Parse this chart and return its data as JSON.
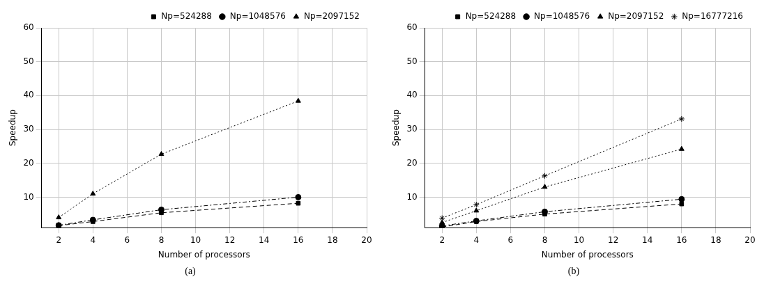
{
  "chart_data": [
    {
      "type": "line",
      "xlabel": "Number of processors",
      "ylabel": "Speedup",
      "x": [
        2,
        4,
        8,
        16
      ],
      "xlim": [
        1,
        20
      ],
      "xticks": [
        2,
        4,
        6,
        8,
        10,
        12,
        14,
        16,
        18,
        20
      ],
      "ylim": [
        1,
        60
      ],
      "yticks": [
        10,
        20,
        30,
        40,
        50,
        60
      ],
      "grid": true,
      "legend": "top right",
      "annotations": [
        "(a)"
      ],
      "series": [
        {
          "name": "Np=524288",
          "color": "#000000",
          "marker": "square",
          "line_style": "dashed",
          "values": [
            1.6,
            2.8,
            5.4,
            8.2
          ]
        },
        {
          "name": "Np=1048576",
          "color": "#000000",
          "marker": "circle",
          "line_style": "dashdot",
          "values": [
            1.7,
            3.3,
            6.3,
            10
          ]
        },
        {
          "name": "Np=2097152",
          "color": "#000000",
          "marker": "triangle",
          "line_style": "dotted",
          "values": [
            4,
            11,
            22.7,
            38.4
          ]
        }
      ]
    },
    {
      "type": "line",
      "xlabel": "Number of processors",
      "ylabel": "Speedup",
      "x": [
        2,
        4,
        8,
        16
      ],
      "xlim": [
        1,
        20
      ],
      "xticks": [
        2,
        4,
        6,
        8,
        10,
        12,
        14,
        16,
        18,
        20
      ],
      "ylim": [
        1,
        60
      ],
      "yticks": [
        10,
        20,
        30,
        40,
        50,
        60
      ],
      "grid": true,
      "legend": "top right",
      "annotations": [
        "(b)"
      ],
      "series": [
        {
          "name": "Np=524288",
          "color": "#000000",
          "marker": "square",
          "line_style": "dashed",
          "values": [
            1.2,
            2.8,
            5,
            8
          ]
        },
        {
          "name": "Np=1048576",
          "color": "#000000",
          "marker": "circle",
          "line_style": "dashdot",
          "values": [
            1.5,
            3,
            5.7,
            9.4
          ]
        },
        {
          "name": "Np=2097152",
          "color": "#000000",
          "marker": "triangle",
          "line_style": "dotted",
          "values": [
            2.5,
            6,
            13,
            24.2
          ]
        },
        {
          "name": "Np=16777216",
          "color": "#000000",
          "marker": "cross",
          "line_style": "dotted",
          "values": [
            3.8,
            7.8,
            16.3,
            33.1
          ]
        }
      ]
    }
  ]
}
